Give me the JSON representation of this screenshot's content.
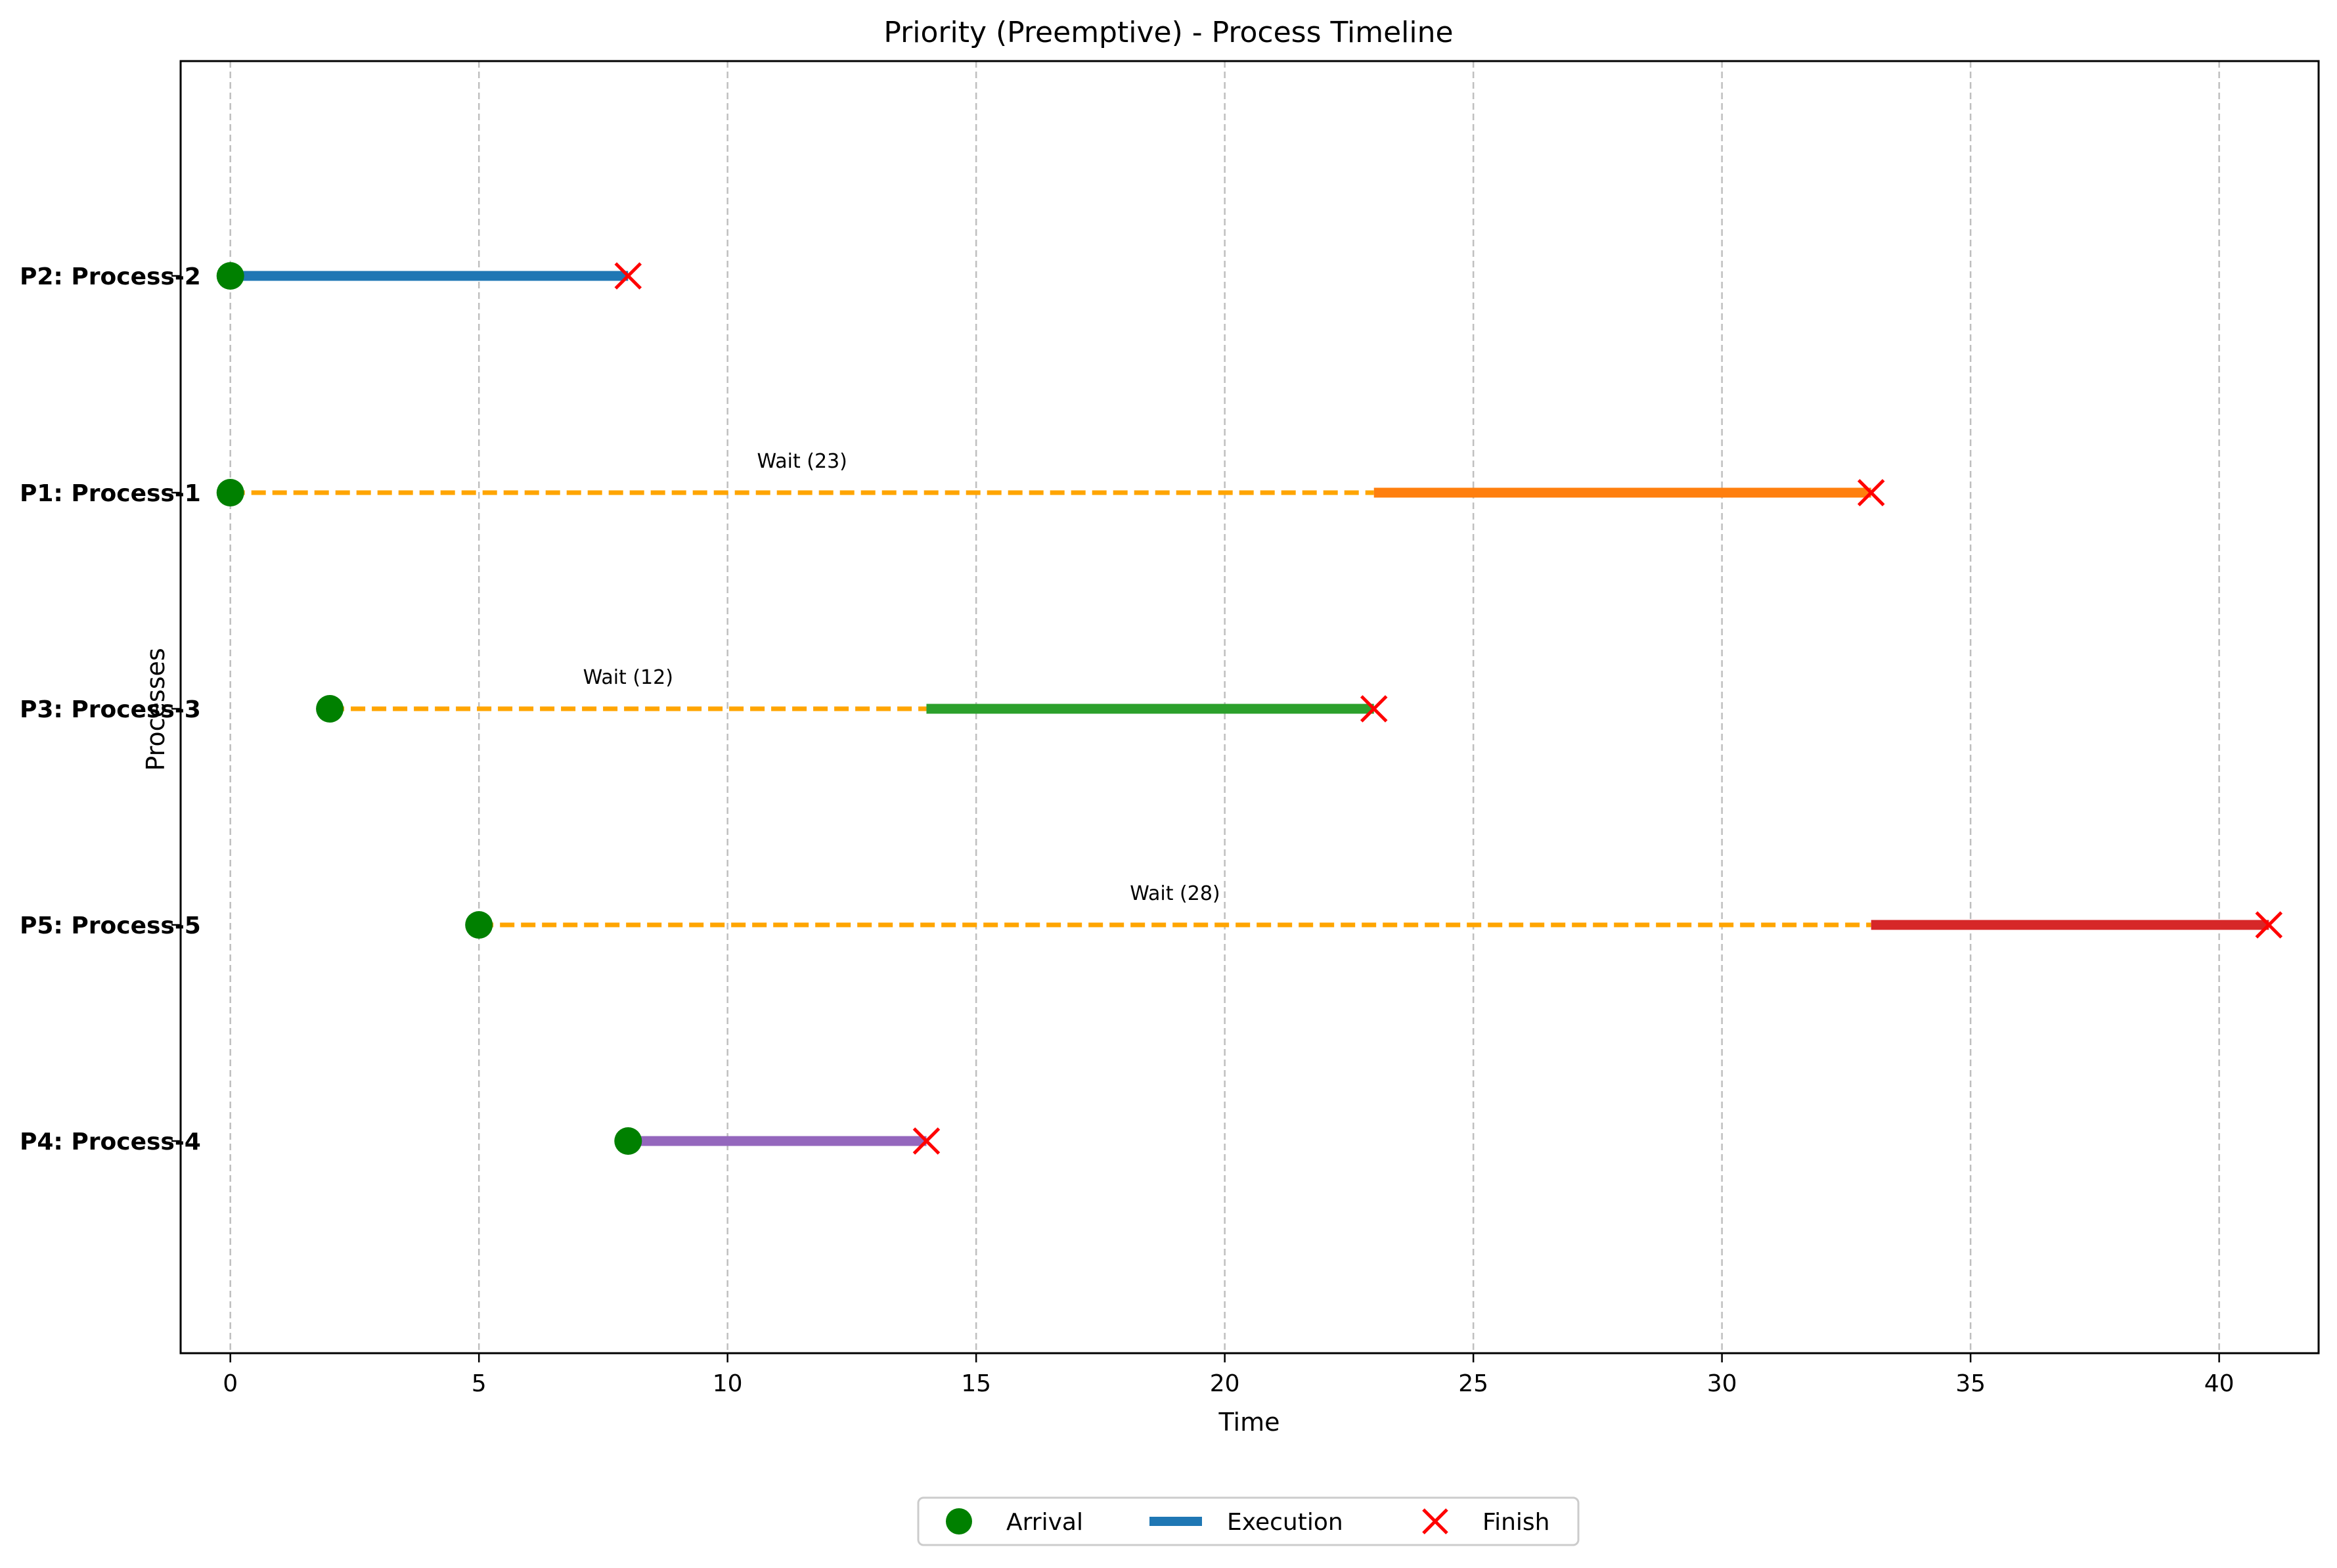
{
  "chart_data": {
    "type": "gantt",
    "title": "Priority (Preemptive) - Process Timeline",
    "xlabel": "Time",
    "ylabel": "Processes",
    "xlim": [
      -1,
      42
    ],
    "x_ticks": [
      0,
      5,
      10,
      15,
      20,
      25,
      30,
      35,
      40
    ],
    "grid": "vertical dashed",
    "processes": [
      {
        "label": "P2: Process-2",
        "arrival": 0,
        "start": 0,
        "finish": 8,
        "color": "#1f77b4",
        "wait_label": ""
      },
      {
        "label": "P1: Process-1",
        "arrival": 0,
        "start": 23,
        "finish": 33,
        "color": "#ff7f0e",
        "wait_label": "Wait (23)"
      },
      {
        "label": "P3: Process-3",
        "arrival": 2,
        "start": 14,
        "finish": 23,
        "color": "#2ca02c",
        "wait_label": "Wait (12)"
      },
      {
        "label": "P5: Process-5",
        "arrival": 5,
        "start": 33,
        "finish": 41,
        "color": "#d62728",
        "wait_label": "Wait (28)"
      },
      {
        "label": "P4: Process-4",
        "arrival": 8,
        "start": 8,
        "finish": 14,
        "color": "#9467bd",
        "wait_label": ""
      }
    ],
    "legend": {
      "placement": "bottom-center",
      "items": [
        {
          "label": "Arrival",
          "symbol": "green-circle",
          "color": "#008000"
        },
        {
          "label": "Execution",
          "symbol": "blue-line",
          "color": "#1f77b4"
        },
        {
          "label": "Finish",
          "symbol": "red-x",
          "color": "#ff0000"
        }
      ]
    },
    "colors": {
      "arrival": "#008000",
      "wait": "#ffa500",
      "finish": "#ff0000",
      "grid": "#b0b0b0"
    }
  }
}
